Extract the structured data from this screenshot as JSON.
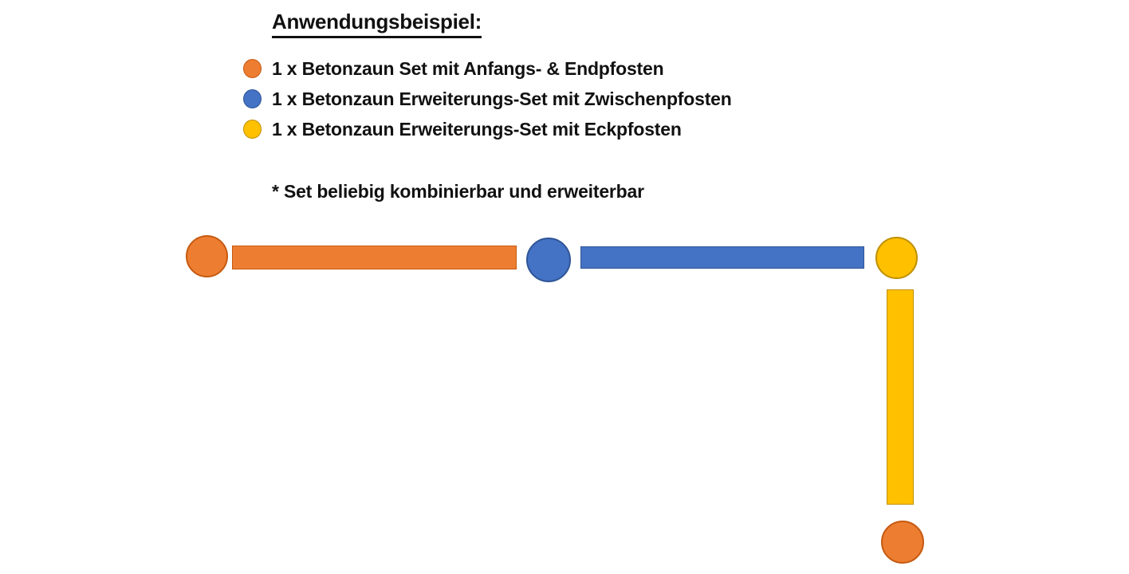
{
  "title": "Anwendungsbeispiel:",
  "legend": {
    "items": [
      {
        "color_name": "orange",
        "label": "1 x Betonzaun Set mit Anfangs- & Endpfosten"
      },
      {
        "color_name": "blue",
        "label": "1 x Betonzaun Erweiterungs-Set mit Zwischenpfosten"
      },
      {
        "color_name": "yellow",
        "label": "1 x Betonzaun Erweiterungs-Set mit Eckpfosten"
      }
    ]
  },
  "note": "* Set beliebig kombinierbar und erweiterbar",
  "colors": {
    "orange": "#ED7D31",
    "orange_border": "#C55A11",
    "blue": "#4472C4",
    "blue_border": "#2F5597",
    "yellow": "#FFC000",
    "yellow_border": "#BF9000",
    "text": "#111111",
    "background": "#FFFFFF"
  },
  "diagram": {
    "shapes": [
      {
        "name": "start-post",
        "type": "circle",
        "color": "orange",
        "meaning": "Anfangspfosten"
      },
      {
        "name": "fence-panel-1",
        "type": "bar",
        "color": "orange",
        "meaning": "Betonzaun Set"
      },
      {
        "name": "intermediate-post",
        "type": "circle",
        "color": "blue",
        "meaning": "Zwischenpfosten"
      },
      {
        "name": "fence-panel-2",
        "type": "bar",
        "color": "blue",
        "meaning": "Erweiterungs-Set"
      },
      {
        "name": "corner-post",
        "type": "circle",
        "color": "yellow",
        "meaning": "Eckpfosten"
      },
      {
        "name": "fence-panel-3",
        "type": "bar",
        "color": "yellow",
        "meaning": "Erweiterungs-Set (Ecke)"
      },
      {
        "name": "end-post",
        "type": "circle",
        "color": "orange",
        "meaning": "Endpfosten"
      }
    ]
  }
}
